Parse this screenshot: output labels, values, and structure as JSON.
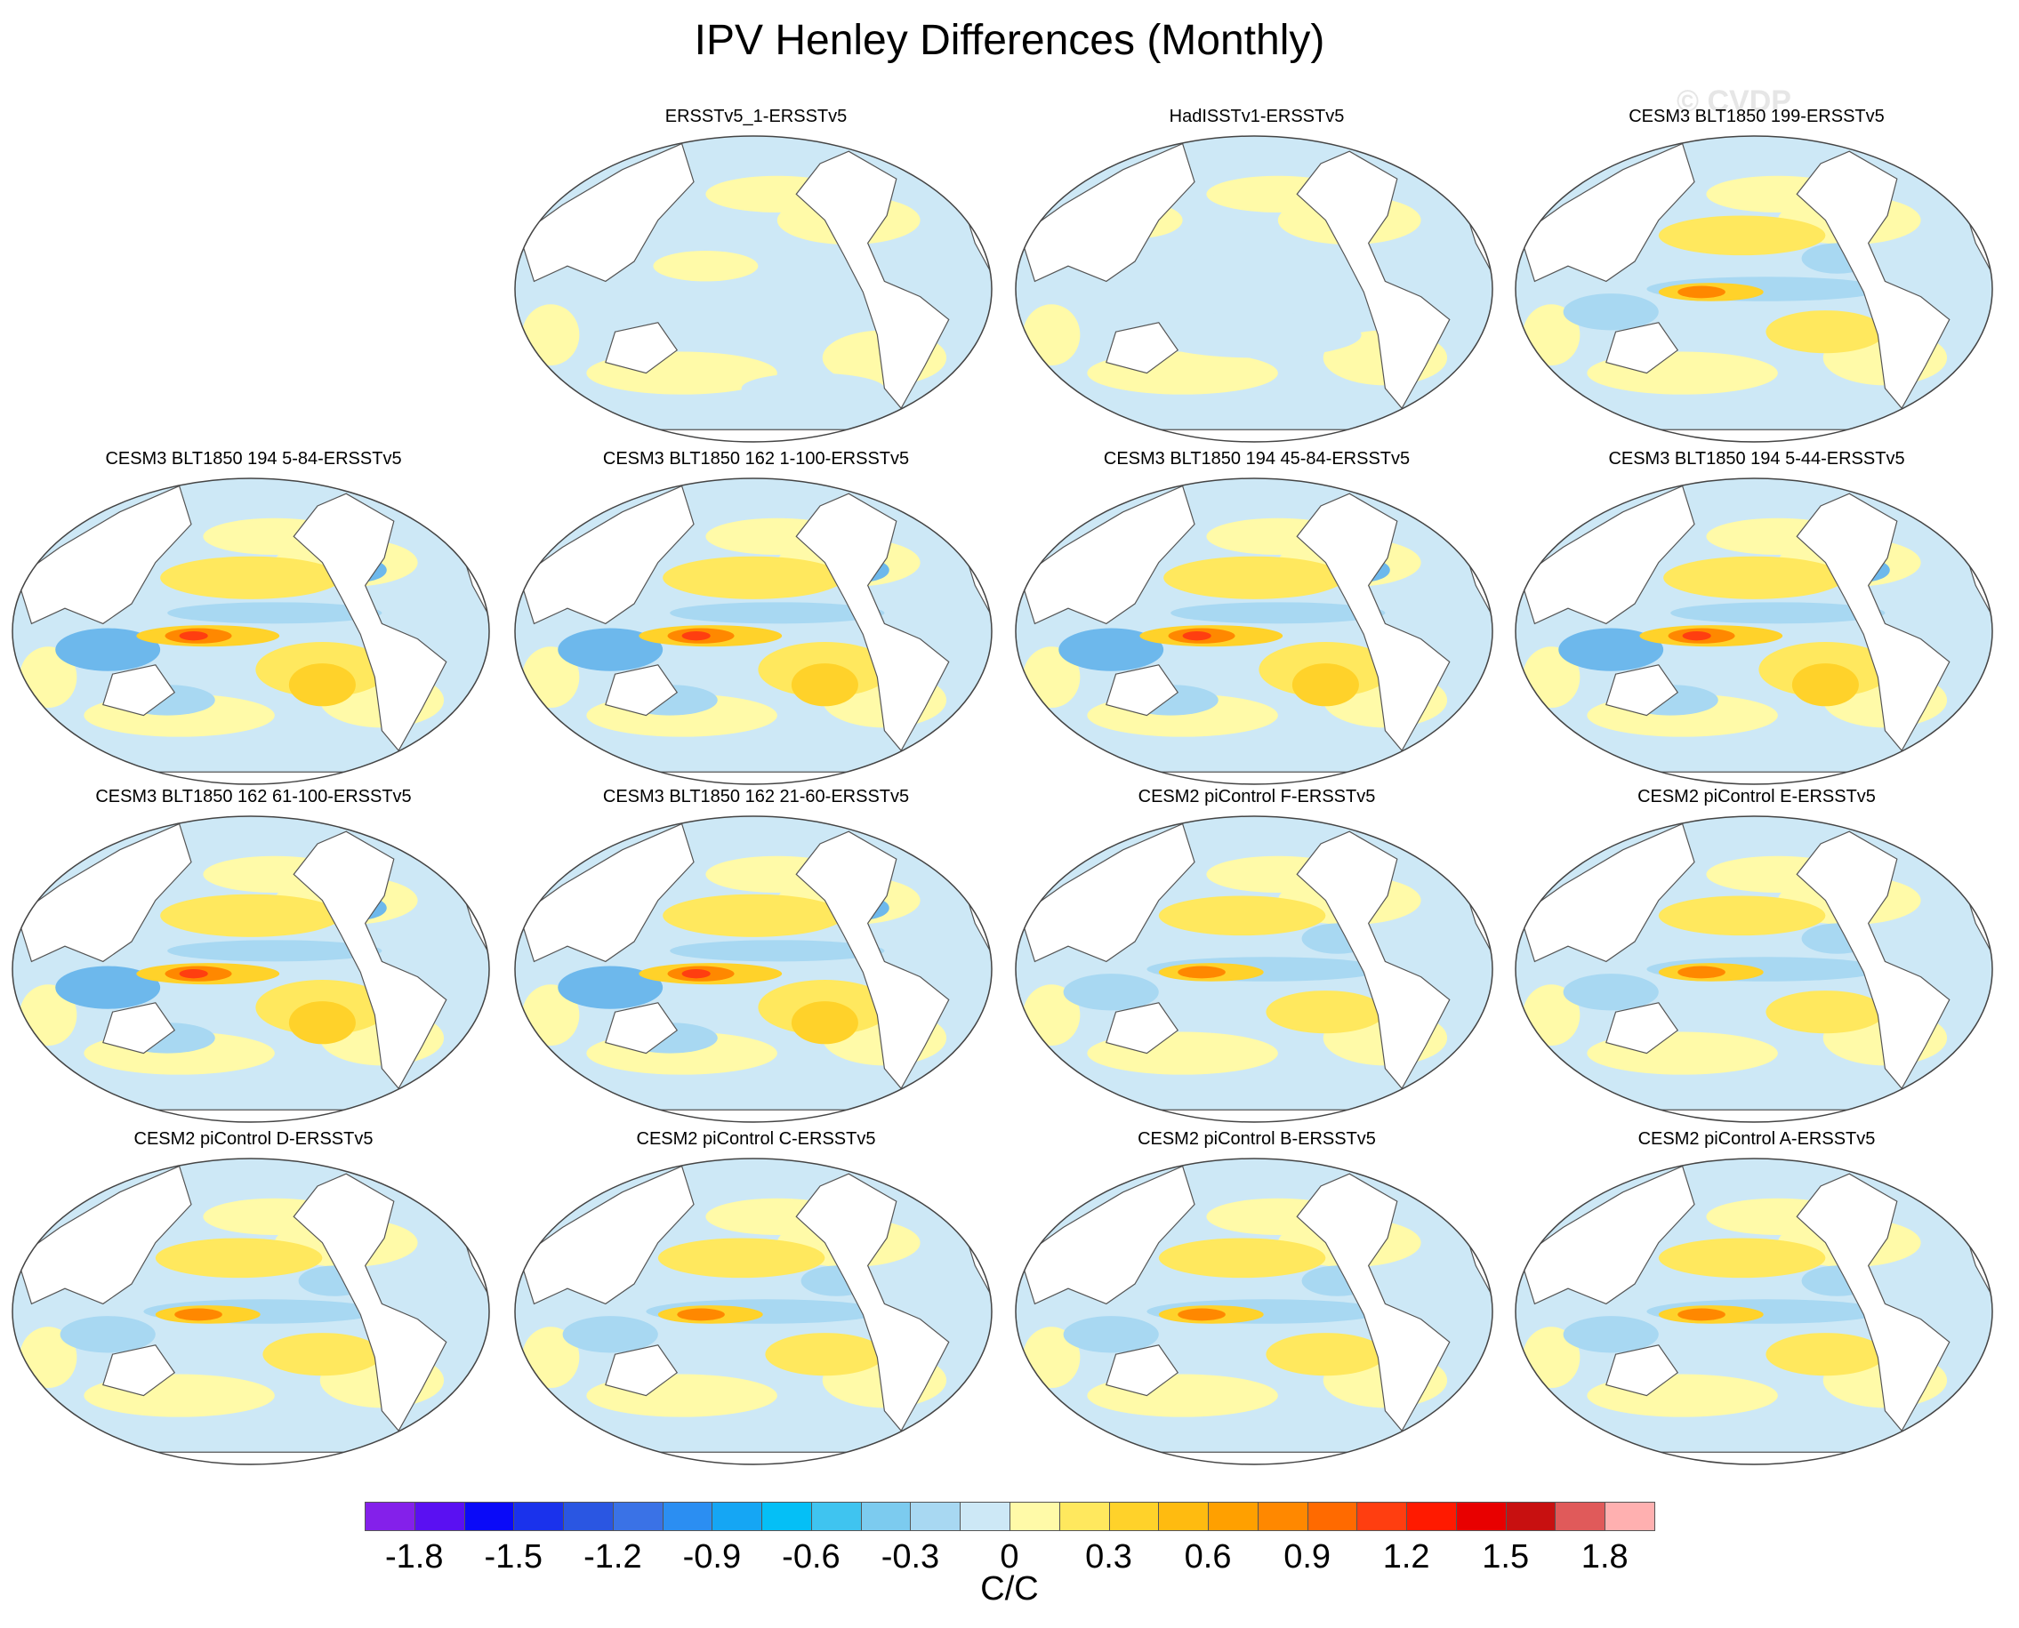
{
  "title": "IPV Henley Differences (Monthly)",
  "watermark": "© CVDP",
  "units": "C/C",
  "panels": [
    {
      "title": "ERSSTv5_1-ERSSTv5",
      "pattern": "weak-a"
    },
    {
      "title": "HadISSTv1-ERSSTv5",
      "pattern": "weak-b"
    },
    {
      "title": "CESM3 BLT1850 199-ERSSTv5",
      "pattern": "moderate"
    },
    {
      "title": "CESM3 BLT1850 194 5-84-ERSSTv5",
      "pattern": "strong"
    },
    {
      "title": "CESM3 BLT1850 162 1-100-ERSSTv5",
      "pattern": "strong"
    },
    {
      "title": "CESM3 BLT1850 194 45-84-ERSSTv5",
      "pattern": "strong"
    },
    {
      "title": "CESM3 BLT1850 194 5-44-ERSSTv5",
      "pattern": "strong"
    },
    {
      "title": "CESM3 BLT1850 162 61-100-ERSSTv5",
      "pattern": "strong"
    },
    {
      "title": "CESM3 BLT1850 162 21-60-ERSSTv5",
      "pattern": "strong"
    },
    {
      "title": "CESM2 piControl F-ERSSTv5",
      "pattern": "moderate"
    },
    {
      "title": "CESM2 piControl E-ERSSTv5",
      "pattern": "moderate"
    },
    {
      "title": "CESM2 piControl D-ERSSTv5",
      "pattern": "moderate"
    },
    {
      "title": "CESM2 piControl C-ERSSTv5",
      "pattern": "moderate"
    },
    {
      "title": "CESM2 piControl B-ERSSTv5",
      "pattern": "moderate"
    },
    {
      "title": "CESM2 piControl A-ERSSTv5",
      "pattern": "moderate"
    }
  ],
  "colorbar": {
    "colors": [
      "#8420ea",
      "#5a10f2",
      "#0a0af8",
      "#1a32ec",
      "#2a56e2",
      "#3a72e6",
      "#2b8ef2",
      "#15a6f4",
      "#05bff6",
      "#3fc4f0",
      "#7ccbef",
      "#a8d8f2",
      "#cde8f6",
      "#fffaa8",
      "#ffe85e",
      "#ffd22a",
      "#ffbb10",
      "#ffa000",
      "#ff8800",
      "#ff6a00",
      "#ff3e10",
      "#ff1a00",
      "#e80000",
      "#c81010",
      "#e05a5a",
      "#ffb0b0"
    ],
    "labels": [
      "-1.8",
      "-1.5",
      "-1.2",
      "-0.9",
      "-0.6",
      "-0.3",
      "0",
      "0.3",
      "0.6",
      "0.9",
      "1.2",
      "1.5",
      "1.8"
    ]
  },
  "palette": {
    "neg_light": "#cde8f6",
    "neg_mid": "#a8d8f2",
    "neg_strong": "#6db8ec",
    "pos_light": "#fffaa8",
    "pos_mid": "#ffe85e",
    "pos_strong": "#ffd22a",
    "hot": "#ff8800",
    "hotter": "#ff3e10",
    "land": "#ffffff",
    "coast": "#555555"
  }
}
